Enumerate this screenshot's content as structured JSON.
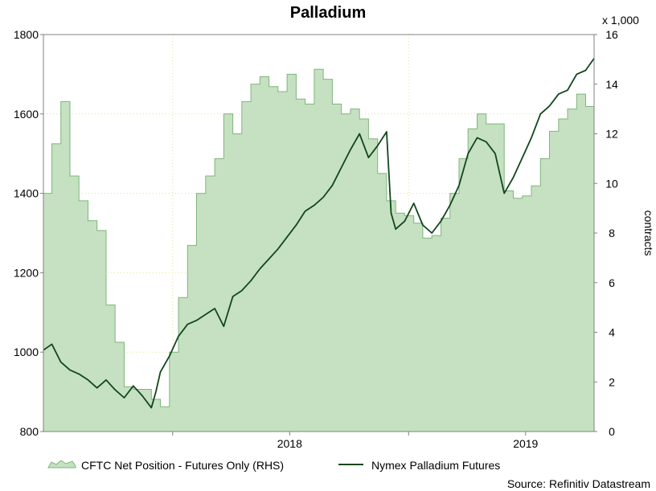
{
  "chart_data": {
    "type": "line-area",
    "title": "Palladium",
    "y_left": {
      "range": [
        800,
        1800
      ],
      "ticks": [
        "800",
        "1000",
        "1200",
        "1400",
        "1600",
        "1800"
      ]
    },
    "y_right": {
      "range": [
        0,
        16
      ],
      "ticks": [
        "0",
        "2",
        "4",
        "6",
        "8",
        "10",
        "12",
        "14",
        "16"
      ],
      "multiplier_label": "x 1,000",
      "label": "contracts"
    },
    "x_axis": {
      "range": [
        "2017-06-15",
        "2019-10-15"
      ],
      "ticks": [
        "2018",
        "2019"
      ]
    },
    "grid": true,
    "legend": [
      "CFTC Net Position - Futures Only (RHS)",
      "Nymex Palladium Futures"
    ],
    "source": "Source: Refinitiv Datastream",
    "colors": {
      "area_fill": "#c5e1c1",
      "area_edge": "#7fb57c",
      "line": "#12461c",
      "grid": "#e9e28c"
    },
    "series": [
      {
        "name": "CFTC Net Position - Futures Only (RHS)",
        "axis": "right",
        "x": [
          "2017-06-15",
          "2017-06-28",
          "2017-07-12",
          "2017-07-26",
          "2017-08-09",
          "2017-08-23",
          "2017-09-06",
          "2017-09-20",
          "2017-10-04",
          "2017-10-18",
          "2017-11-01",
          "2017-11-15",
          "2017-11-29",
          "2017-12-13",
          "2017-12-27",
          "2018-01-10",
          "2018-01-24",
          "2018-02-07",
          "2018-02-21",
          "2018-03-07",
          "2018-03-21",
          "2018-04-04",
          "2018-04-18",
          "2018-05-02",
          "2018-05-16",
          "2018-05-30",
          "2018-06-13",
          "2018-06-27",
          "2018-07-11",
          "2018-07-25",
          "2018-08-08",
          "2018-08-22",
          "2018-09-05",
          "2018-09-19",
          "2018-10-03",
          "2018-10-17",
          "2018-10-31",
          "2018-11-14",
          "2018-11-28",
          "2018-12-12",
          "2018-12-26",
          "2019-01-09",
          "2019-01-23",
          "2019-02-06",
          "2019-02-20",
          "2019-03-06",
          "2019-03-20",
          "2019-04-03",
          "2019-04-17",
          "2019-05-01",
          "2019-05-15",
          "2019-05-29",
          "2019-06-12",
          "2019-06-26",
          "2019-07-10",
          "2019-07-24",
          "2019-08-07",
          "2019-08-21",
          "2019-09-04",
          "2019-09-18",
          "2019-10-02",
          "2019-10-15"
        ],
        "values": [
          9.6,
          11.6,
          13.3,
          10.3,
          9.3,
          8.5,
          8.1,
          5.1,
          3.6,
          1.8,
          1.7,
          1.7,
          1.3,
          1.0,
          3.2,
          5.4,
          7.5,
          9.6,
          10.3,
          11.0,
          12.8,
          12.0,
          13.3,
          14.0,
          14.3,
          13.9,
          13.7,
          14.4,
          13.4,
          13.2,
          14.6,
          14.2,
          13.2,
          12.8,
          13.0,
          12.6,
          11.8,
          10.4,
          9.3,
          8.8,
          8.7,
          8.4,
          7.8,
          7.9,
          8.6,
          9.6,
          11.0,
          12.2,
          12.8,
          12.4,
          12.4,
          9.7,
          9.4,
          9.5,
          9.9,
          11.0,
          12.1,
          12.6,
          13.0,
          13.6,
          13.1,
          12.9
        ]
      },
      {
        "name": "Nymex Palladium Futures",
        "axis": "left",
        "x": [
          "2017-06-15",
          "2017-06-28",
          "2017-07-12",
          "2017-07-26",
          "2017-08-09",
          "2017-08-23",
          "2017-09-06",
          "2017-09-20",
          "2017-10-04",
          "2017-10-18",
          "2017-11-01",
          "2017-11-15",
          "2017-11-29",
          "2017-12-06",
          "2017-12-13",
          "2017-12-27",
          "2018-01-10",
          "2018-01-24",
          "2018-02-07",
          "2018-02-21",
          "2018-03-07",
          "2018-03-21",
          "2018-04-04",
          "2018-04-18",
          "2018-05-02",
          "2018-05-16",
          "2018-05-30",
          "2018-06-13",
          "2018-06-27",
          "2018-07-11",
          "2018-07-25",
          "2018-08-08",
          "2018-08-22",
          "2018-09-05",
          "2018-09-19",
          "2018-10-03",
          "2018-10-17",
          "2018-10-31",
          "2018-11-14",
          "2018-11-28",
          "2018-12-05",
          "2018-12-12",
          "2018-12-26",
          "2019-01-09",
          "2019-01-23",
          "2019-02-06",
          "2019-02-20",
          "2019-03-06",
          "2019-03-20",
          "2019-04-03",
          "2019-04-17",
          "2019-05-01",
          "2019-05-15",
          "2019-05-29",
          "2019-06-12",
          "2019-06-26",
          "2019-07-10",
          "2019-07-24",
          "2019-08-07",
          "2019-08-21",
          "2019-09-04",
          "2019-09-18",
          "2019-10-02",
          "2019-10-15"
        ],
        "values": [
          1005,
          1020,
          975,
          955,
          945,
          930,
          910,
          930,
          905,
          885,
          915,
          890,
          860,
          900,
          950,
          990,
          1040,
          1070,
          1080,
          1095,
          1110,
          1065,
          1140,
          1155,
          1180,
          1210,
          1235,
          1260,
          1290,
          1320,
          1355,
          1370,
          1390,
          1420,
          1465,
          1510,
          1550,
          1490,
          1520,
          1555,
          1350,
          1310,
          1330,
          1375,
          1320,
          1300,
          1330,
          1370,
          1420,
          1500,
          1540,
          1530,
          1500,
          1400,
          1440,
          1490,
          1540,
          1600,
          1620,
          1650,
          1660,
          1700,
          1710,
          1740
        ]
      }
    ]
  }
}
